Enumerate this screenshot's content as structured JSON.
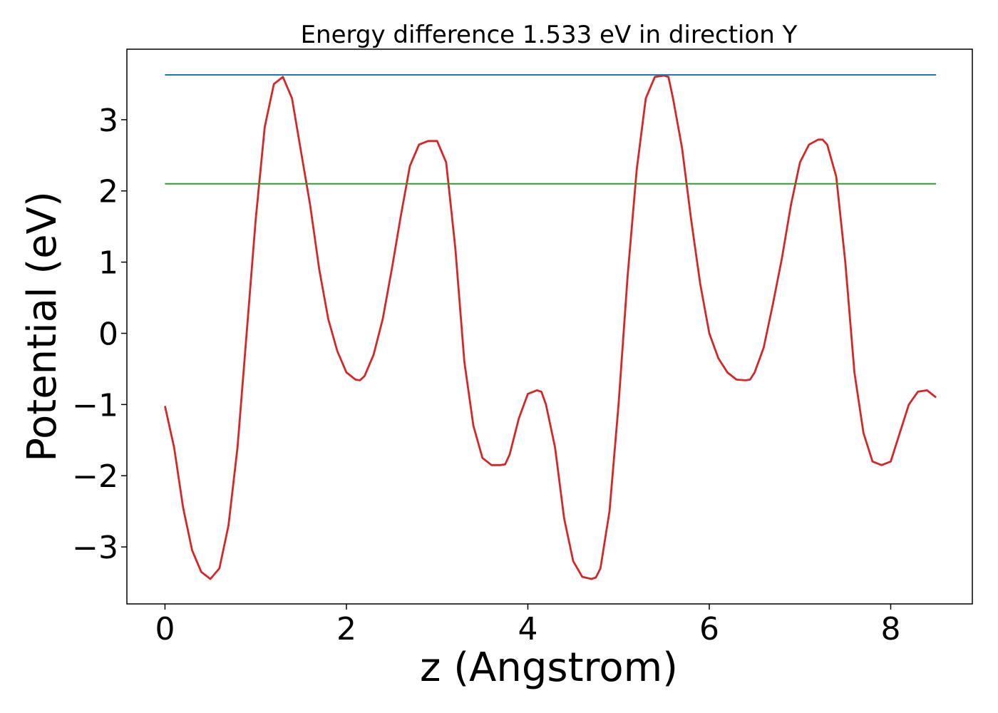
{
  "chart_data": {
    "type": "line",
    "title": "Energy difference 1.533 eV in direction Y",
    "xlabel": "z (Angstrom)",
    "ylabel": "Potential (eV)",
    "xlim": [
      -0.42,
      8.9
    ],
    "ylim": [
      -3.8,
      3.99
    ],
    "xticks": [
      0,
      2,
      4,
      6,
      8
    ],
    "xtick_labels": [
      "0",
      "2",
      "4",
      "6",
      "8"
    ],
    "yticks": [
      -3,
      -2,
      -1,
      0,
      1,
      2,
      3
    ],
    "ytick_labels": [
      "−3",
      "−2",
      "−1",
      "0",
      "1",
      "2",
      "3"
    ],
    "grid": false,
    "legend": "none",
    "series": [
      {
        "color": "#d62728",
        "x": [
          0,
          0.1,
          0.2,
          0.3,
          0.4,
          0.5,
          0.6,
          0.7,
          0.8,
          0.9,
          1.0,
          1.1,
          1.2,
          1.3,
          1.4,
          1.5,
          1.6,
          1.7,
          1.8,
          1.9,
          2.0,
          2.1,
          2.15,
          2.2,
          2.3,
          2.4,
          2.5,
          2.6,
          2.7,
          2.8,
          2.9,
          3.0,
          3.1,
          3.2,
          3.3,
          3.4,
          3.5,
          3.6,
          3.7,
          3.75,
          3.8,
          3.9,
          4.0,
          4.1,
          4.15,
          4.2,
          4.3,
          4.4,
          4.5,
          4.6,
          4.7,
          4.75,
          4.8,
          4.9,
          5.0,
          5.1,
          5.2,
          5.3,
          5.4,
          5.5,
          5.55,
          5.6,
          5.7,
          5.8,
          5.9,
          6.0,
          6.1,
          6.2,
          6.3,
          6.4,
          6.45,
          6.5,
          6.6,
          6.7,
          6.8,
          6.9,
          7.0,
          7.1,
          7.2,
          7.25,
          7.3,
          7.4,
          7.5,
          7.6,
          7.7,
          7.8,
          7.9,
          8.0,
          8.1,
          8.2,
          8.3,
          8.4,
          8.5
        ],
        "values": [
          -1.02,
          -1.6,
          -2.45,
          -3.05,
          -3.35,
          -3.45,
          -3.3,
          -2.7,
          -1.6,
          0.0,
          1.6,
          2.9,
          3.5,
          3.6,
          3.3,
          2.55,
          1.8,
          0.9,
          0.2,
          -0.25,
          -0.55,
          -0.65,
          -0.66,
          -0.6,
          -0.3,
          0.2,
          0.9,
          1.65,
          2.35,
          2.65,
          2.7,
          2.7,
          2.4,
          1.2,
          -0.4,
          -1.3,
          -1.75,
          -1.85,
          -1.85,
          -1.84,
          -1.7,
          -1.2,
          -0.85,
          -0.8,
          -0.82,
          -1.0,
          -1.6,
          -2.6,
          -3.2,
          -3.42,
          -3.45,
          -3.43,
          -3.3,
          -2.5,
          -1.0,
          0.8,
          2.3,
          3.3,
          3.6,
          3.62,
          3.6,
          3.3,
          2.6,
          1.6,
          0.7,
          0.0,
          -0.35,
          -0.55,
          -0.65,
          -0.66,
          -0.65,
          -0.55,
          -0.2,
          0.4,
          1.05,
          1.8,
          2.4,
          2.65,
          2.72,
          2.72,
          2.65,
          2.2,
          1.0,
          -0.55,
          -1.4,
          -1.8,
          -1.85,
          -1.8,
          -1.4,
          -1.0,
          -0.82,
          -0.8,
          -0.9
        ]
      },
      {
        "color": "#1f77b4",
        "x": [
          0,
          8.5
        ],
        "values": [
          3.63,
          3.63
        ]
      },
      {
        "color": "#2ca02c",
        "x": [
          0,
          8.5
        ],
        "values": [
          2.1,
          2.1
        ]
      }
    ]
  }
}
